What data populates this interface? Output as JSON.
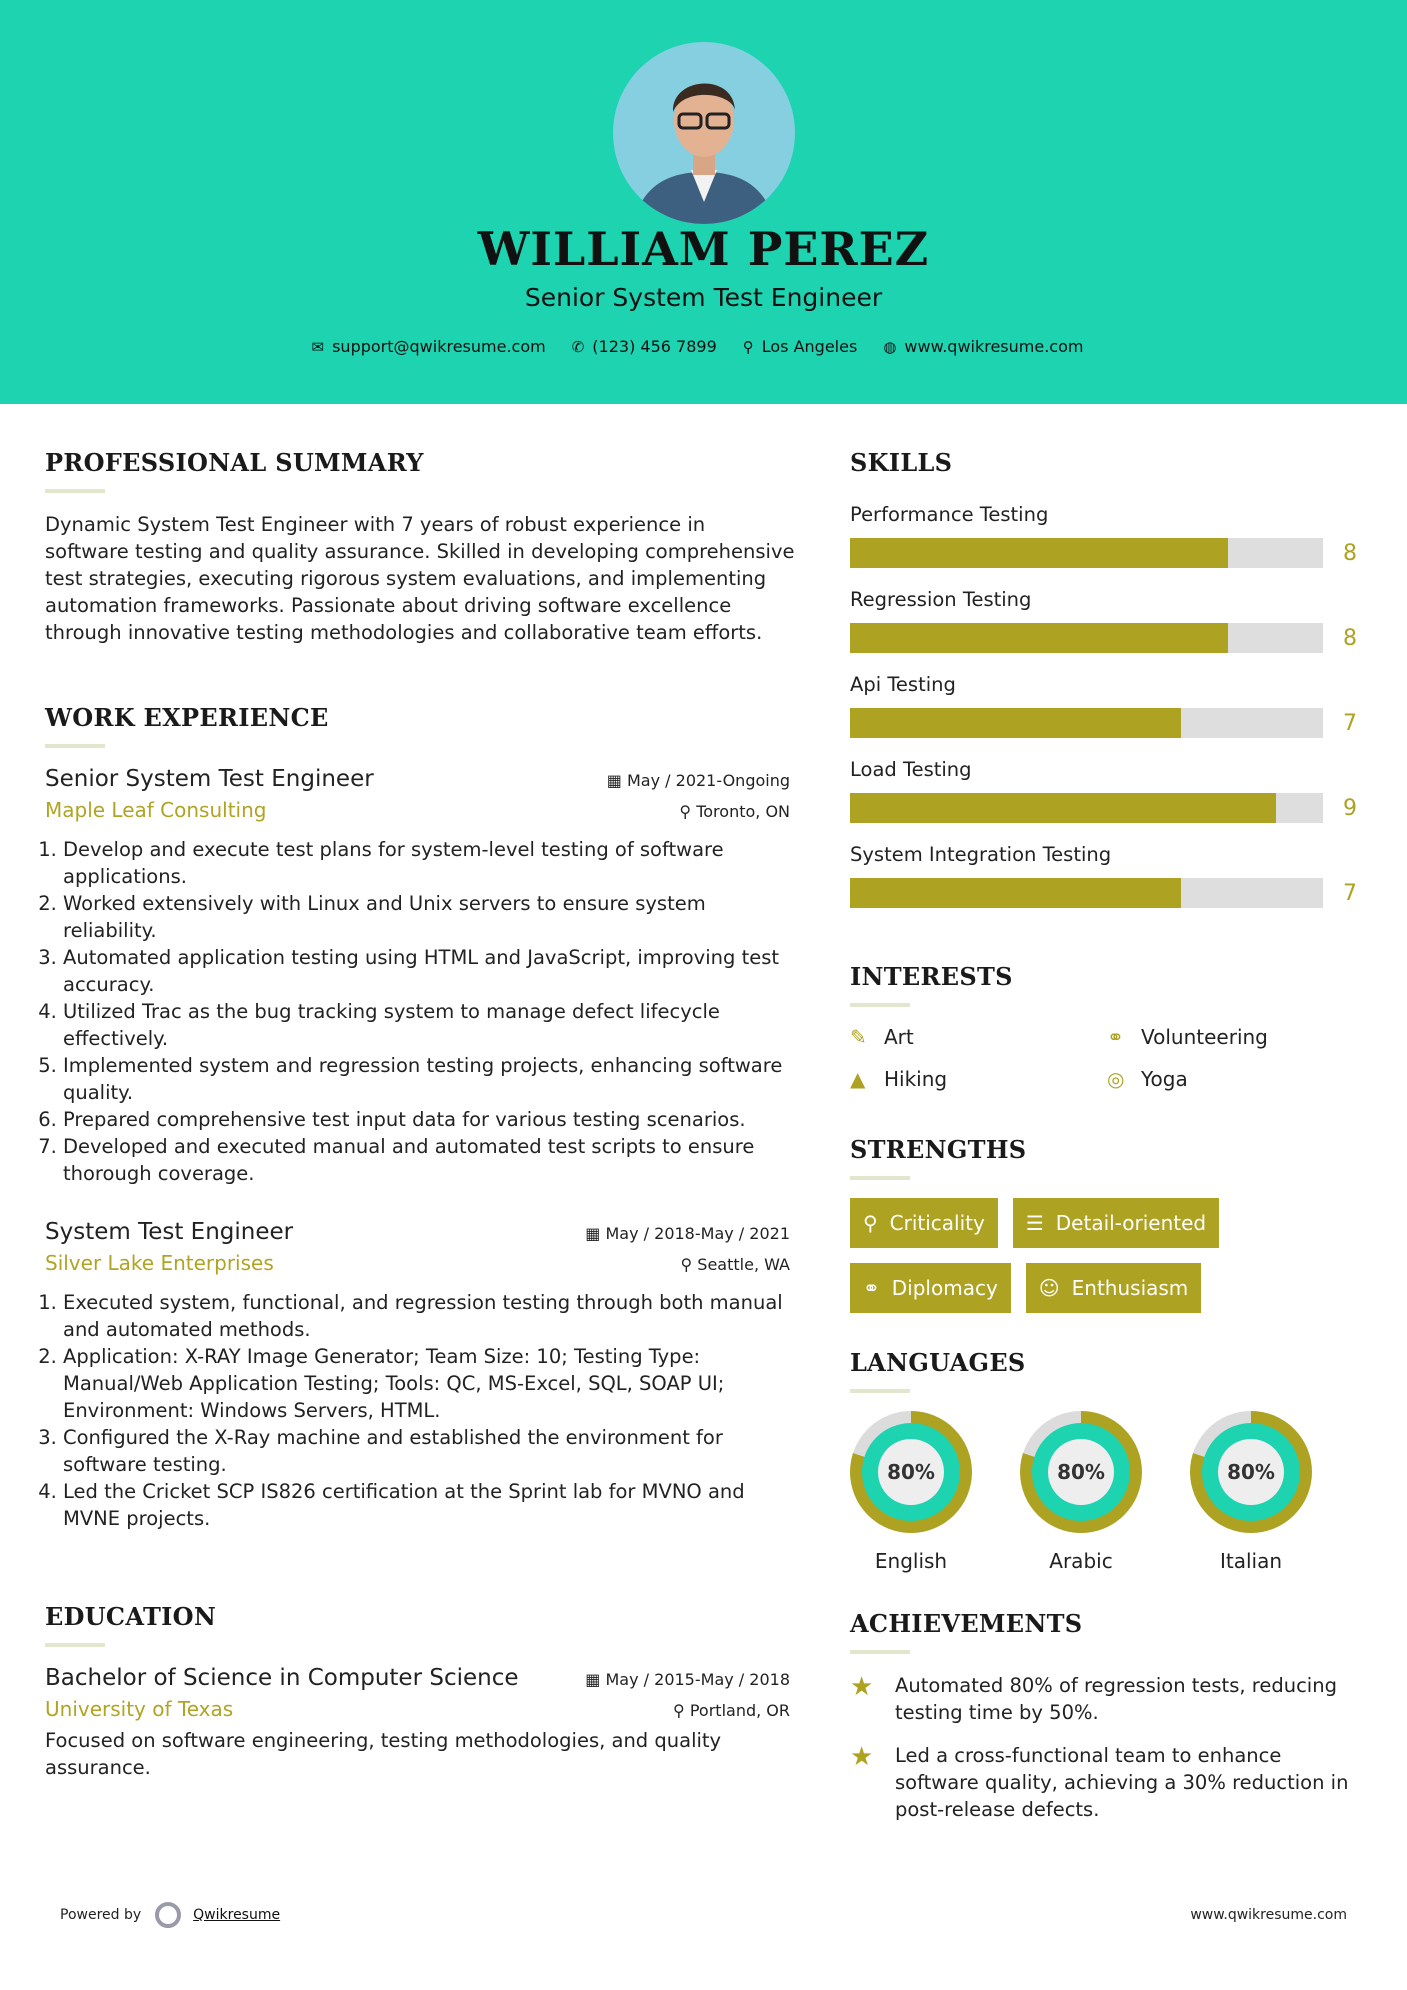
{
  "colors": {
    "header": "#1dd3b0",
    "accent": "#aea222"
  },
  "header": {
    "name": "WILLIAM PEREZ",
    "title": "Senior System Test Engineer",
    "contacts": [
      {
        "icon": "envelope-icon",
        "text": "support@qwikresume.com"
      },
      {
        "icon": "phone-icon",
        "text": "(123) 456 7899"
      },
      {
        "icon": "map-pin-icon",
        "text": "Los Angeles"
      },
      {
        "icon": "globe-icon",
        "text": "www.qwikresume.com"
      }
    ]
  },
  "summary": {
    "heading": "PROFESSIONAL SUMMARY",
    "text": "Dynamic System Test Engineer with 7 years of robust experience in software testing and quality assurance. Skilled in developing comprehensive test strategies, executing rigorous system evaluations, and implementing automation frameworks. Passionate about driving software excellence through innovative testing methodologies and collaborative team efforts."
  },
  "experience": {
    "heading": "WORK EXPERIENCE",
    "jobs": [
      {
        "title": "Senior System Test Engineer",
        "date": "May / 2021-Ongoing",
        "company": "Maple Leaf Consulting",
        "location": "Toronto, ON",
        "items": [
          "Develop and execute test plans for system-level testing of software applications.",
          "Worked extensively with Linux and Unix servers to ensure system reliability.",
          "Automated application testing using HTML and JavaScript, improving test accuracy.",
          "Utilized Trac as the bug tracking system to manage defect lifecycle effectively.",
          "Implemented system and regression testing projects, enhancing software quality.",
          "Prepared comprehensive test input data for various testing scenarios.",
          "Developed and executed manual and automated test scripts to ensure thorough coverage."
        ]
      },
      {
        "title": "System Test Engineer",
        "date": "May / 2018-May / 2021",
        "company": "Silver Lake Enterprises",
        "location": "Seattle, WA",
        "items": [
          "Executed system, functional, and regression testing through both manual and automated methods.",
          "Application: X-RAY Image Generator; Team Size: 10; Testing Type: Manual/Web Application Testing; Tools: QC, MS-Excel, SQL, SOAP UI; Environment: Windows Servers, HTML.",
          "Configured the X-Ray machine and established the environment for software testing.",
          "Led the Cricket SCP IS826 certification at the Sprint lab for MVNO and MVNE projects."
        ]
      }
    ]
  },
  "education": {
    "heading": "EDUCATION",
    "degree": "Bachelor of Science in Computer Science",
    "date": "May / 2015-May / 2018",
    "school": "University of Texas",
    "location": "Portland, OR",
    "text": "Focused on software engineering, testing methodologies, and quality assurance."
  },
  "skills": {
    "heading": "SKILLS",
    "max": 10,
    "items": [
      {
        "name": "Performance Testing",
        "value": 8
      },
      {
        "name": "Regression Testing",
        "value": 8
      },
      {
        "name": "Api Testing",
        "value": 7
      },
      {
        "name": "Load Testing",
        "value": 9
      },
      {
        "name": "System Integration Testing",
        "value": 7
      }
    ]
  },
  "interests": {
    "heading": "INTERESTS",
    "items": [
      {
        "icon": "paintbrush-icon",
        "label": "Art"
      },
      {
        "icon": "handshake-icon",
        "label": "Volunteering"
      },
      {
        "icon": "tree-icon",
        "label": "Hiking"
      },
      {
        "icon": "life-ring-icon",
        "label": "Yoga"
      }
    ]
  },
  "strengths": {
    "heading": "STRENGTHS",
    "items": [
      {
        "icon": "search-icon",
        "label": "Criticality"
      },
      {
        "icon": "list-icon",
        "label": "Detail-oriented"
      },
      {
        "icon": "handshake-icon",
        "label": "Diplomacy"
      },
      {
        "icon": "smile-icon",
        "label": "Enthusiasm"
      }
    ]
  },
  "languages": {
    "heading": "LANGUAGES",
    "items": [
      {
        "name": "English",
        "percent": 80,
        "label": "80%"
      },
      {
        "name": "Arabic",
        "percent": 80,
        "label": "80%"
      },
      {
        "name": "Italian",
        "percent": 80,
        "label": "80%"
      }
    ]
  },
  "achievements": {
    "heading": "ACHIEVEMENTS",
    "items": [
      "Automated 80% of regression tests, reducing testing time by 50%.",
      "Led a cross-functional team to enhance software quality, achieving a 30% reduction in post-release defects."
    ]
  },
  "footer": {
    "powered": "Powered by",
    "brand": "Qwikresume",
    "url": "www.qwikresume.com"
  }
}
